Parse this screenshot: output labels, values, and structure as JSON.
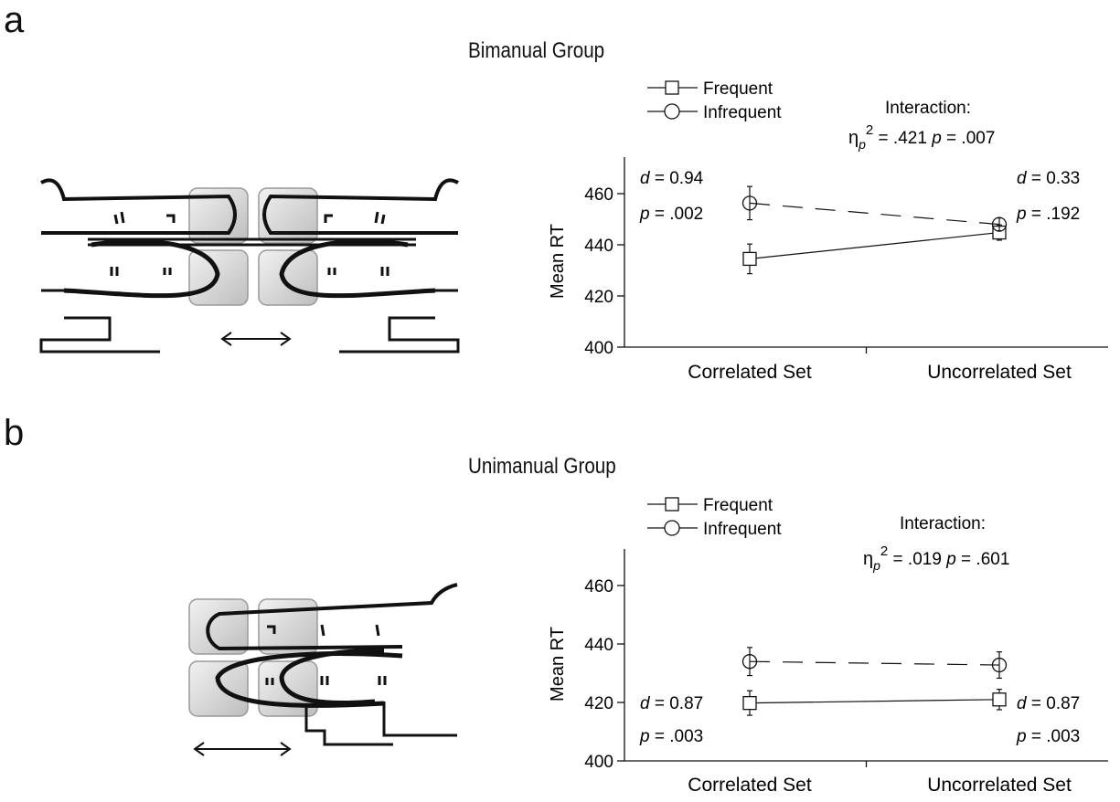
{
  "panels": [
    {
      "letter": "a",
      "group_title": "Bimanual Group"
    },
    {
      "letter": "b",
      "group_title": "Unimanual Group"
    }
  ],
  "chart_data": [
    {
      "type": "line",
      "title": "Bimanual Group",
      "xlabel": "",
      "ylabel": "Mean RT",
      "categories": [
        "Correlated Set",
        "Uncorrelated Set"
      ],
      "ylim": [
        400,
        460
      ],
      "yticks": [
        400,
        420,
        440,
        460
      ],
      "legend_position": "top-left",
      "series": [
        {
          "name": "Frequent",
          "marker": "square",
          "line": "solid",
          "values": [
            434.5,
            444.8
          ],
          "err": [
            5.8,
            3.0
          ]
        },
        {
          "name": "Infrequent",
          "marker": "circle",
          "line": "dashed",
          "values": [
            456.3,
            448.0
          ],
          "err": [
            6.5,
            2.5
          ]
        }
      ],
      "interaction": {
        "heading": "Interaction:",
        "eta_symbol": "η",
        "eta_sub": "p",
        "eta_sup": "2",
        "eta_val": " = .421",
        "p_label": "p",
        "p_val": " = .007"
      },
      "stats_left": {
        "d_label": "d",
        "d_val": " = 0.94",
        "p_label": "p",
        "p_val": " = .002"
      },
      "stats_right": {
        "d_label": "d",
        "d_val": " = 0.33",
        "p_label": "p",
        "p_val": " = .192"
      }
    },
    {
      "type": "line",
      "title": "Unimanual Group",
      "xlabel": "",
      "ylabel": "Mean RT",
      "categories": [
        "Correlated Set",
        "Uncorrelated Set"
      ],
      "ylim": [
        400,
        460
      ],
      "yticks": [
        400,
        420,
        440,
        460
      ],
      "legend_position": "top-left",
      "series": [
        {
          "name": "Frequent",
          "marker": "square",
          "line": "solid",
          "values": [
            419.8,
            421.0
          ],
          "err": [
            4.2,
            3.5
          ]
        },
        {
          "name": "Infrequent",
          "marker": "circle",
          "line": "dashed",
          "values": [
            434.0,
            432.8
          ],
          "err": [
            4.8,
            4.5
          ]
        }
      ],
      "interaction": {
        "heading": "Interaction:",
        "eta_symbol": "η",
        "eta_sub": "p",
        "eta_sup": "2",
        "eta_val": " = .019",
        "p_label": "p",
        "p_val": " = .601"
      },
      "stats_left": {
        "d_label": "d",
        "d_val": " = 0.87",
        "p_label": "p",
        "p_val": " = .003"
      },
      "stats_right": {
        "d_label": "d",
        "d_val": " = 0.87",
        "p_label": "p",
        "p_val": " = .003"
      }
    }
  ]
}
